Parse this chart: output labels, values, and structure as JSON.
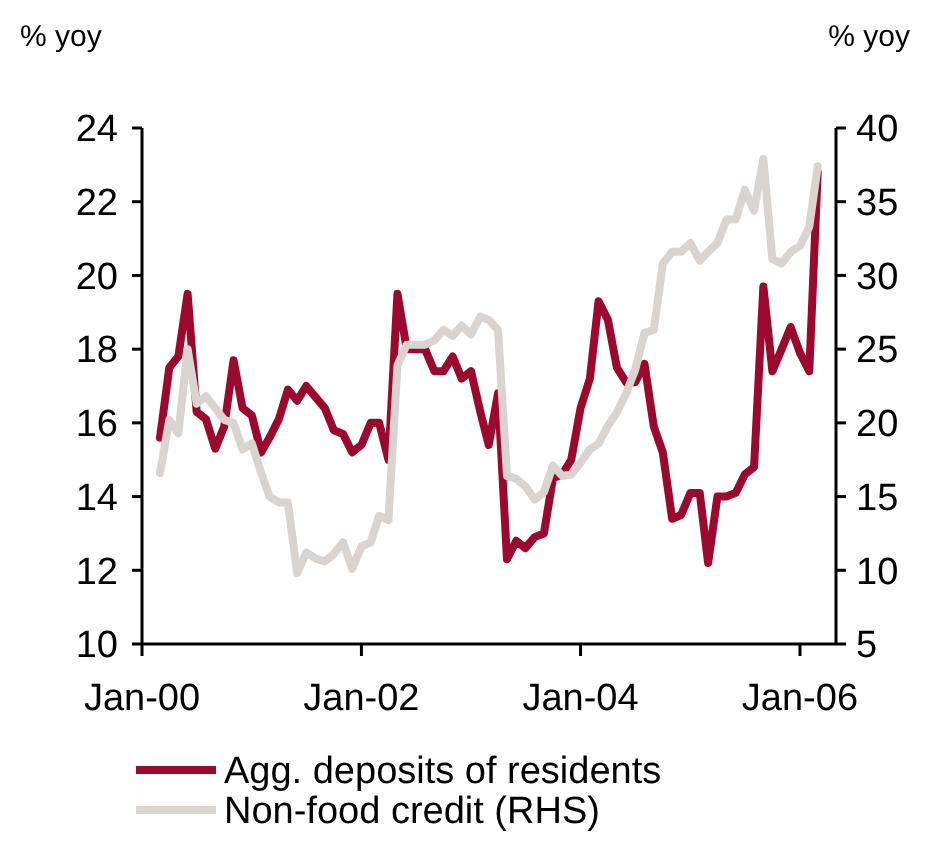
{
  "chart_data": {
    "type": "line",
    "ylabel": "% yoy",
    "y2label": "% yoy",
    "x": [
      "2000-03",
      "2000-04",
      "2000-05",
      "2000-06",
      "2000-07",
      "2000-08",
      "2000-09",
      "2000-10",
      "2000-11",
      "2000-12",
      "2001-01",
      "2001-02",
      "2001-03",
      "2001-04",
      "2001-05",
      "2001-06",
      "2001-07",
      "2001-08",
      "2001-09",
      "2001-10",
      "2001-11",
      "2001-12",
      "2002-01",
      "2002-02",
      "2002-03",
      "2002-04",
      "2002-05",
      "2002-06",
      "2002-07",
      "2002-08",
      "2002-09",
      "2002-10",
      "2002-11",
      "2002-12",
      "2003-01",
      "2003-02",
      "2003-03",
      "2003-04",
      "2003-05",
      "2003-06",
      "2003-07",
      "2003-08",
      "2003-09",
      "2003-10",
      "2003-11",
      "2003-12",
      "2004-01",
      "2004-02",
      "2004-03",
      "2004-04",
      "2004-05",
      "2004-06",
      "2004-07",
      "2004-08",
      "2004-09",
      "2004-10",
      "2004-11",
      "2004-12",
      "2005-01",
      "2005-02",
      "2005-03",
      "2005-04",
      "2005-05",
      "2005-06",
      "2005-07",
      "2005-08",
      "2005-09",
      "2005-10",
      "2005-11",
      "2005-12",
      "2006-01",
      "2006-02",
      "2006-03"
    ],
    "series": [
      {
        "name": "Agg. deposits of residents",
        "color": "#9b0a2e",
        "values": [
          15.6,
          17.5,
          17.8,
          19.5,
          16.3,
          16.1,
          15.3,
          15.9,
          17.7,
          16.4,
          16.2,
          15.2,
          15.6,
          16.1,
          16.9,
          16.6,
          17.0,
          16.7,
          16.4,
          15.8,
          15.7,
          15.2,
          15.4,
          16.0,
          16.0,
          15.0,
          19.5,
          18.0,
          18.0,
          18.0,
          17.4,
          17.4,
          17.8,
          17.2,
          17.4,
          16.3,
          15.4,
          16.8,
          12.3,
          12.8,
          12.6,
          12.9,
          13.0,
          14.5,
          14.6,
          15.0,
          16.4,
          17.2,
          19.3,
          18.8,
          17.5,
          17.1,
          17.1,
          17.6,
          15.9,
          15.2,
          13.4,
          13.5,
          14.1,
          14.1,
          12.2,
          14.0,
          14.0,
          14.1,
          14.6,
          14.8,
          19.7,
          17.4,
          18.0,
          18.6,
          17.9,
          17.4,
          22.8
        ]
      },
      {
        "name": "Non-food credit (RHS)",
        "color": "#d9d4d0",
        "axis": "y2",
        "values": [
          16.6,
          20.2,
          19.3,
          25.0,
          21.3,
          21.8,
          21.0,
          20.2,
          20.0,
          18.2,
          18.6,
          16.6,
          15.0,
          14.6,
          14.6,
          9.8,
          11.2,
          10.8,
          10.6,
          11.1,
          11.9,
          10.1,
          11.6,
          11.9,
          13.7,
          13.4,
          23.9,
          25.3,
          25.3,
          25.3,
          25.6,
          26.3,
          25.9,
          26.6,
          26.0,
          27.2,
          27.0,
          26.3,
          16.4,
          16.2,
          15.7,
          14.8,
          15.3,
          17.1,
          16.4,
          16.5,
          17.3,
          18.2,
          18.6,
          19.8,
          20.7,
          22.0,
          23.6,
          26.1,
          26.3,
          30.8,
          31.6,
          31.6,
          32.2,
          31.0,
          31.6,
          32.2,
          33.8,
          33.8,
          35.8,
          34.4,
          37.9,
          31.1,
          30.8,
          31.6,
          32.0,
          33.3,
          37.4
        ]
      }
    ],
    "xlim": [
      "2000-01",
      "2006-05"
    ],
    "xticks": [
      {
        "value": "2000-01",
        "label": "Jan-00"
      },
      {
        "value": "2002-01",
        "label": "Jan-02"
      },
      {
        "value": "2004-01",
        "label": "Jan-04"
      },
      {
        "value": "2006-01",
        "label": "Jan-06"
      }
    ],
    "ylim": [
      10,
      24
    ],
    "yticks": [
      10,
      12,
      14,
      16,
      18,
      20,
      22,
      24
    ],
    "y2lim": [
      5,
      40
    ],
    "y2ticks": [
      5,
      10,
      15,
      20,
      25,
      30,
      35,
      40
    ],
    "legend": "bottom",
    "line_style": "solid",
    "marker": "none"
  }
}
